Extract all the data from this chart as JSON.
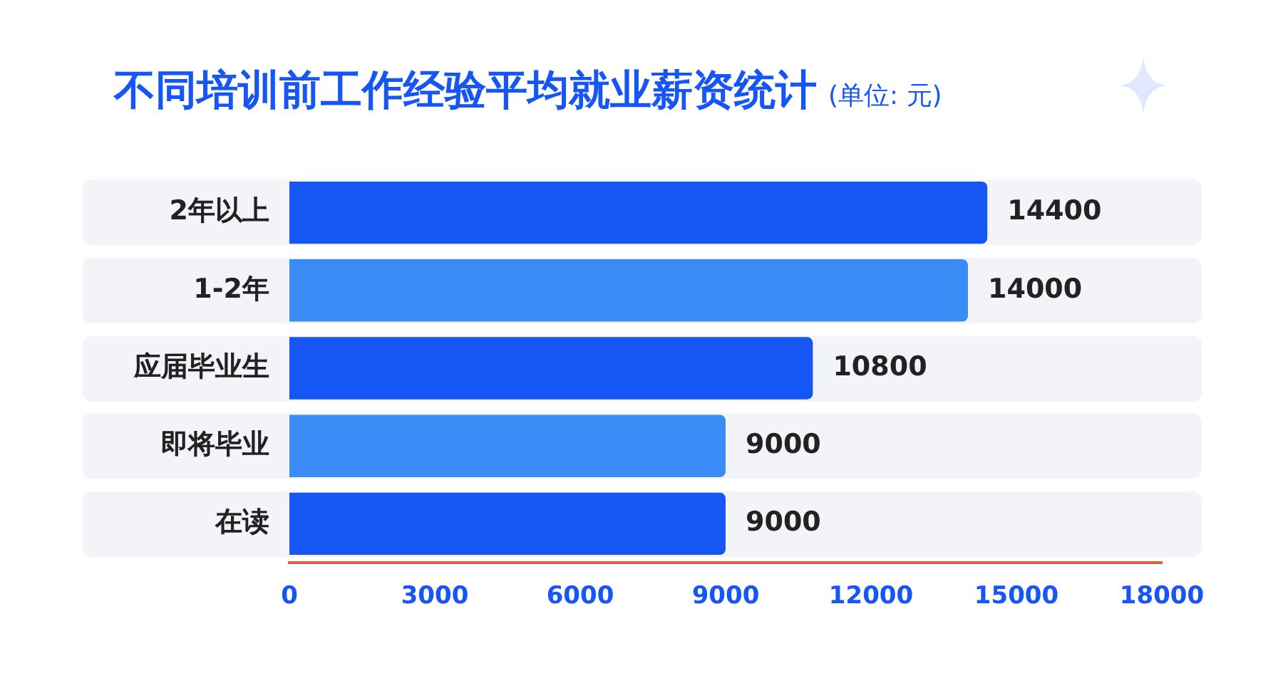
{
  "chart_data": {
    "type": "bar",
    "orientation": "horizontal",
    "title": "不同培训前工作经验平均就业薪资统计",
    "subtitle": "(单位: 元)",
    "categories": [
      "2年以上",
      "1-2年",
      "应届毕业生",
      "即将毕业",
      "在读"
    ],
    "values": [
      14400,
      14000,
      10800,
      9000,
      9000
    ],
    "colors": [
      "#1556f5",
      "#3a8bf6",
      "#1556f5",
      "#3a8bf6",
      "#1556f5"
    ],
    "xlim": [
      0,
      18000
    ],
    "xticks": [
      0,
      3000,
      6000,
      9000,
      12000,
      15000,
      18000
    ],
    "data_labels": true,
    "grid": false,
    "legend": false
  }
}
